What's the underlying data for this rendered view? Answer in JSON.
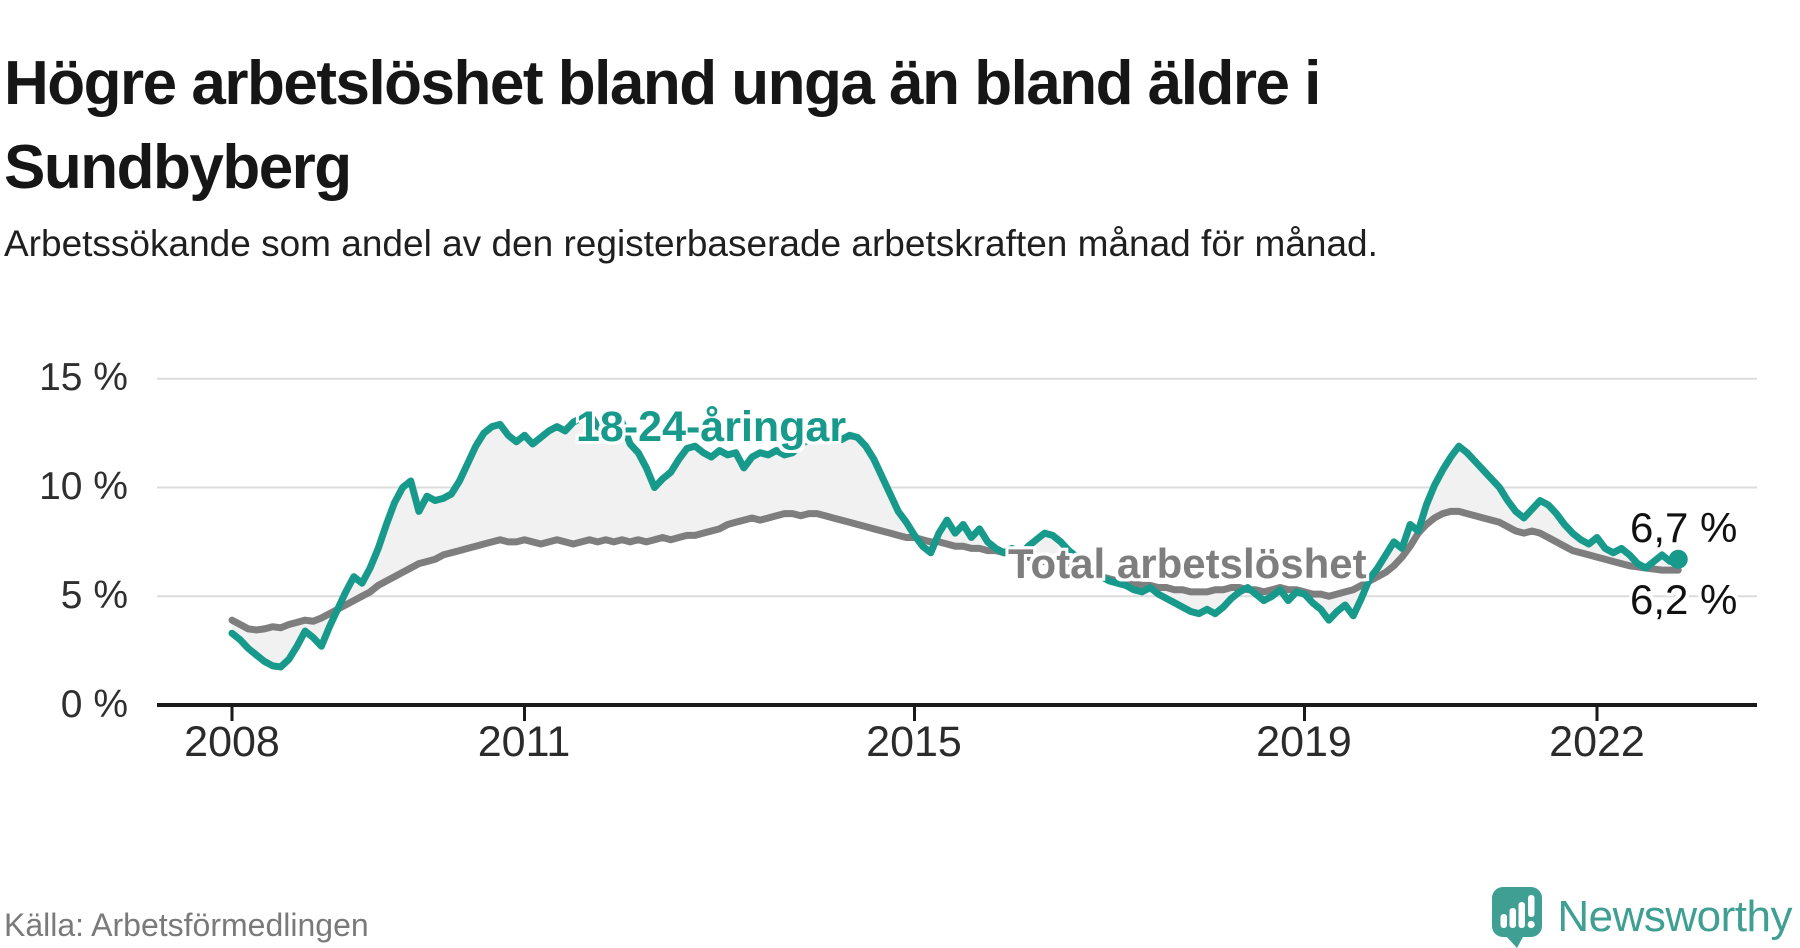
{
  "page": {
    "title": "Högre arbetslöshet bland unga än bland äldre i Sundbyberg",
    "subtitle": "Arbetssökande som andel av den registerbaserade arbetskraften månad för månad.",
    "source": "Källa: Arbetsförmedlingen",
    "brand": "Newsworthy"
  },
  "colors": {
    "youth": "#179a8b",
    "total": "#7e7e7e",
    "band": "#f1f1f1",
    "grid": "#dcdcdc",
    "axis": "#1a1a1a",
    "end_label": "#111111",
    "logo": "#3f9f92",
    "source_text": "#7a7a7a"
  },
  "chart_data": {
    "type": "line",
    "title": "Högre arbetslöshet bland unga än bland äldre i Sundbyberg",
    "subtitle": "Arbetssökande som andel av den registerbaserade arbetskraften månad för månad.",
    "x_unit": "month",
    "x_start": "2008-01",
    "x_end": "2022-11",
    "ylim": [
      0,
      16
    ],
    "grid": "horizontal",
    "legend_position": "inline-labels",
    "y_ticks": [
      {
        "label": "15 %",
        "value": 15
      },
      {
        "label": "10 %",
        "value": 10
      },
      {
        "label": "5 %",
        "value": 5
      },
      {
        "label": "0 %",
        "value": 0
      }
    ],
    "x_ticks": [
      {
        "label": "2008",
        "year": 2008
      },
      {
        "label": "2011",
        "year": 2011
      },
      {
        "label": "2015",
        "year": 2015
      },
      {
        "label": "2019",
        "year": 2019
      },
      {
        "label": "2022",
        "year": 2022
      }
    ],
    "series": [
      {
        "name": "18-24-åringar",
        "color": "#179a8b",
        "end_label": "6,7 %",
        "end_value": 6.7,
        "values": [
          3.3,
          3.0,
          2.6,
          2.3,
          2.0,
          1.8,
          1.75,
          2.1,
          2.7,
          3.4,
          3.1,
          2.7,
          3.6,
          4.4,
          5.2,
          5.9,
          5.6,
          6.3,
          7.2,
          8.3,
          9.3,
          10.0,
          10.3,
          8.9,
          9.6,
          9.4,
          9.5,
          9.7,
          10.3,
          11.1,
          11.9,
          12.5,
          12.8,
          12.9,
          12.4,
          12.1,
          12.4,
          12.0,
          12.3,
          12.6,
          12.8,
          12.6,
          13.0,
          13.2,
          13.4,
          12.8,
          12.6,
          12.8,
          13.0,
          12.0,
          11.6,
          10.9,
          10.0,
          10.4,
          10.7,
          11.3,
          11.8,
          11.9,
          11.6,
          11.4,
          11.7,
          11.5,
          11.6,
          10.9,
          11.4,
          11.6,
          11.5,
          11.7,
          11.5,
          11.6,
          12.0,
          12.2,
          12.4,
          12.2,
          12.3,
          12.2,
          12.4,
          12.3,
          11.9,
          11.3,
          10.5,
          9.7,
          8.9,
          8.4,
          7.8,
          7.3,
          7.0,
          7.9,
          8.5,
          7.9,
          8.3,
          7.7,
          8.1,
          7.5,
          7.2,
          7.0,
          7.2,
          6.9,
          7.3,
          7.6,
          7.9,
          7.8,
          7.5,
          7.1,
          6.8,
          6.5,
          6.2,
          5.9,
          5.7,
          5.6,
          5.5,
          5.3,
          5.2,
          5.4,
          5.1,
          4.9,
          4.7,
          4.5,
          4.3,
          4.2,
          4.4,
          4.2,
          4.5,
          4.9,
          5.2,
          5.4,
          5.1,
          4.8,
          5.0,
          5.3,
          4.8,
          5.2,
          5.1,
          4.7,
          4.4,
          3.9,
          4.3,
          4.6,
          4.1,
          4.9,
          5.8,
          6.3,
          6.9,
          7.5,
          7.2,
          8.3,
          8.0,
          9.2,
          10.1,
          10.8,
          11.4,
          11.9,
          11.6,
          11.2,
          10.8,
          10.4,
          10.0,
          9.4,
          8.9,
          8.6,
          9.0,
          9.4,
          9.2,
          8.8,
          8.3,
          7.9,
          7.6,
          7.4,
          7.7,
          7.2,
          7.0,
          7.2,
          6.9,
          6.5,
          6.3,
          6.6,
          6.9,
          6.6,
          6.7
        ]
      },
      {
        "name": "Total arbetslöshet",
        "color": "#7e7e7e",
        "end_label": "6,2 %",
        "end_value": 6.2,
        "values": [
          3.9,
          3.7,
          3.5,
          3.45,
          3.5,
          3.6,
          3.55,
          3.7,
          3.8,
          3.9,
          3.85,
          4.0,
          4.2,
          4.4,
          4.6,
          4.8,
          5.0,
          5.2,
          5.5,
          5.7,
          5.9,
          6.1,
          6.3,
          6.5,
          6.6,
          6.7,
          6.9,
          7.0,
          7.1,
          7.2,
          7.3,
          7.4,
          7.5,
          7.6,
          7.5,
          7.5,
          7.6,
          7.5,
          7.4,
          7.5,
          7.6,
          7.5,
          7.4,
          7.5,
          7.6,
          7.5,
          7.6,
          7.5,
          7.6,
          7.5,
          7.6,
          7.5,
          7.6,
          7.7,
          7.6,
          7.7,
          7.8,
          7.8,
          7.9,
          8.0,
          8.1,
          8.3,
          8.4,
          8.5,
          8.6,
          8.5,
          8.6,
          8.7,
          8.8,
          8.8,
          8.7,
          8.8,
          8.8,
          8.7,
          8.6,
          8.5,
          8.4,
          8.3,
          8.2,
          8.1,
          8.0,
          7.9,
          7.8,
          7.7,
          7.7,
          7.6,
          7.5,
          7.5,
          7.4,
          7.3,
          7.3,
          7.2,
          7.2,
          7.1,
          7.1,
          7.0,
          7.0,
          6.9,
          6.8,
          6.7,
          6.6,
          6.5,
          6.4,
          6.3,
          6.2,
          6.1,
          6.0,
          5.9,
          5.8,
          5.7,
          5.7,
          5.6,
          5.5,
          5.5,
          5.4,
          5.4,
          5.3,
          5.3,
          5.2,
          5.2,
          5.2,
          5.3,
          5.3,
          5.4,
          5.4,
          5.3,
          5.3,
          5.2,
          5.3,
          5.4,
          5.3,
          5.3,
          5.2,
          5.1,
          5.1,
          5.0,
          5.1,
          5.2,
          5.3,
          5.5,
          5.7,
          5.9,
          6.1,
          6.4,
          6.8,
          7.3,
          7.9,
          8.3,
          8.6,
          8.8,
          8.9,
          8.9,
          8.8,
          8.7,
          8.6,
          8.5,
          8.4,
          8.2,
          8.0,
          7.9,
          8.0,
          7.9,
          7.7,
          7.5,
          7.3,
          7.1,
          7.0,
          6.9,
          6.8,
          6.7,
          6.6,
          6.5,
          6.4,
          6.35,
          6.3,
          6.25,
          6.2,
          6.2,
          6.2
        ]
      }
    ]
  }
}
